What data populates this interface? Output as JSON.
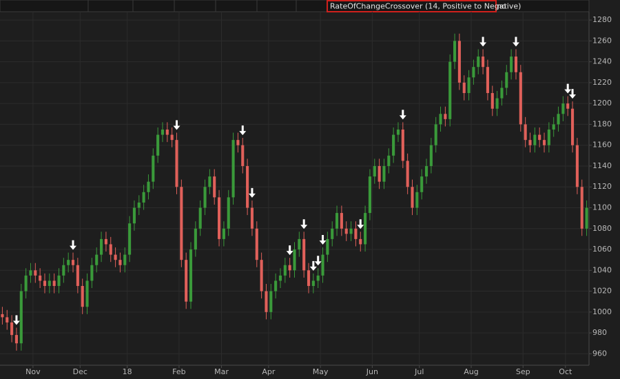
{
  "chart_data": {
    "type": "candlestick",
    "title": "RateOfChangeCrossover (14, Positive to Negative)",
    "title_suffix": "no",
    "up_color": "#3a9a3a",
    "down_color": "#e0605a",
    "signal_color": "#ffffff",
    "grid": true,
    "xlim": [
      0,
      125
    ],
    "xticks": [
      {
        "value": 7,
        "label": "Nov"
      },
      {
        "value": 17,
        "label": "Dec"
      },
      {
        "value": 27,
        "label": "18"
      },
      {
        "value": 38,
        "label": "Feb"
      },
      {
        "value": 47,
        "label": "Mar"
      },
      {
        "value": 57,
        "label": "Apr"
      },
      {
        "value": 68,
        "label": "May"
      },
      {
        "value": 79,
        "label": "Jun"
      },
      {
        "value": 89,
        "label": "Jul"
      },
      {
        "value": 100,
        "label": "Aug"
      },
      {
        "value": 111,
        "label": "Sep"
      },
      {
        "value": 120,
        "label": "Oct"
      }
    ],
    "ylim": [
      949,
      1288
    ],
    "yticks": [
      960,
      980,
      1000,
      1020,
      1040,
      1060,
      1080,
      1100,
      1120,
      1140,
      1160,
      1180,
      1200,
      1220,
      1240,
      1260,
      1280
    ],
    "open": [
      998,
      995,
      990,
      978,
      970,
      1020,
      1035,
      1040,
      1035,
      1030,
      1025,
      1030,
      1025,
      1035,
      1045,
      1050,
      1045,
      1025,
      1005,
      1030,
      1045,
      1055,
      1070,
      1065,
      1055,
      1050,
      1045,
      1055,
      1085,
      1100,
      1105,
      1115,
      1125,
      1150,
      1170,
      1175,
      1170,
      1165,
      1120,
      1050,
      1010,
      1060,
      1080,
      1100,
      1120,
      1130,
      1110,
      1070,
      1080,
      1110,
      1165,
      1160,
      1140,
      1100,
      1080,
      1050,
      1020,
      1000,
      1020,
      1030,
      1035,
      1045,
      1040,
      1060,
      1070,
      1040,
      1025,
      1030,
      1035,
      1055,
      1070,
      1080,
      1095,
      1080,
      1075,
      1080,
      1070,
      1065,
      1095,
      1130,
      1140,
      1125,
      1140,
      1150,
      1170,
      1175,
      1145,
      1120,
      1100,
      1115,
      1130,
      1140,
      1160,
      1180,
      1190,
      1185,
      1240,
      1260,
      1220,
      1210,
      1225,
      1235,
      1245,
      1235,
      1210,
      1195,
      1205,
      1215,
      1230,
      1245,
      1230,
      1180,
      1165,
      1160,
      1170,
      1165,
      1160,
      1175,
      1180,
      1190,
      1200,
      1195,
      1160,
      1120,
      1080
    ],
    "high": [
      1005,
      1002,
      997,
      985,
      1027,
      1042,
      1047,
      1047,
      1042,
      1037,
      1037,
      1037,
      1042,
      1052,
      1057,
      1057,
      1052,
      1032,
      1037,
      1052,
      1062,
      1077,
      1077,
      1072,
      1062,
      1057,
      1062,
      1092,
      1107,
      1112,
      1122,
      1132,
      1157,
      1177,
      1182,
      1182,
      1177,
      1172,
      1127,
      1057,
      1067,
      1087,
      1107,
      1127,
      1137,
      1137,
      1117,
      1087,
      1117,
      1172,
      1172,
      1167,
      1147,
      1107,
      1087,
      1057,
      1027,
      1027,
      1037,
      1042,
      1052,
      1052,
      1067,
      1077,
      1077,
      1047,
      1037,
      1042,
      1062,
      1077,
      1087,
      1102,
      1102,
      1087,
      1087,
      1087,
      1077,
      1102,
      1137,
      1147,
      1147,
      1147,
      1157,
      1177,
      1182,
      1182,
      1152,
      1127,
      1122,
      1137,
      1147,
      1167,
      1187,
      1197,
      1197,
      1247,
      1267,
      1267,
      1227,
      1232,
      1242,
      1252,
      1252,
      1242,
      1217,
      1212,
      1222,
      1237,
      1252,
      1252,
      1237,
      1187,
      1172,
      1177,
      1177,
      1172,
      1182,
      1187,
      1197,
      1207,
      1207,
      1202,
      1167,
      1127,
      1107
    ],
    "low": [
      988,
      983,
      971,
      963,
      963,
      1013,
      1028,
      1028,
      1023,
      1018,
      1018,
      1018,
      1018,
      1028,
      1038,
      1038,
      1018,
      998,
      998,
      1023,
      1038,
      1048,
      1058,
      1048,
      1043,
      1038,
      1038,
      1048,
      1078,
      1093,
      1098,
      1108,
      1118,
      1143,
      1163,
      1163,
      1158,
      1113,
      1043,
      1003,
      1003,
      1053,
      1073,
      1093,
      1113,
      1103,
      1063,
      1063,
      1073,
      1103,
      1153,
      1133,
      1093,
      1073,
      1043,
      1013,
      993,
      993,
      1013,
      1023,
      1028,
      1033,
      1033,
      1053,
      1033,
      1018,
      1018,
      1023,
      1028,
      1048,
      1063,
      1073,
      1073,
      1068,
      1068,
      1063,
      1058,
      1058,
      1088,
      1123,
      1118,
      1118,
      1133,
      1143,
      1163,
      1138,
      1113,
      1093,
      1093,
      1108,
      1123,
      1133,
      1153,
      1173,
      1178,
      1178,
      1233,
      1213,
      1203,
      1203,
      1218,
      1228,
      1228,
      1203,
      1188,
      1188,
      1198,
      1208,
      1223,
      1223,
      1173,
      1158,
      1153,
      1153,
      1158,
      1153,
      1153,
      1168,
      1173,
      1183,
      1188,
      1153,
      1113,
      1073,
      1073
    ],
    "close": [
      995,
      990,
      978,
      970,
      1020,
      1035,
      1040,
      1035,
      1030,
      1025,
      1030,
      1025,
      1035,
      1045,
      1050,
      1045,
      1025,
      1005,
      1030,
      1045,
      1055,
      1070,
      1065,
      1055,
      1050,
      1045,
      1055,
      1085,
      1100,
      1105,
      1115,
      1125,
      1150,
      1170,
      1175,
      1170,
      1165,
      1120,
      1050,
      1010,
      1060,
      1080,
      1100,
      1120,
      1130,
      1110,
      1070,
      1080,
      1110,
      1165,
      1160,
      1140,
      1100,
      1080,
      1050,
      1020,
      1000,
      1020,
      1030,
      1035,
      1045,
      1040,
      1060,
      1070,
      1040,
      1025,
      1030,
      1035,
      1055,
      1070,
      1080,
      1095,
      1080,
      1075,
      1080,
      1070,
      1065,
      1095,
      1130,
      1140,
      1125,
      1140,
      1150,
      1170,
      1175,
      1145,
      1120,
      1100,
      1115,
      1130,
      1140,
      1160,
      1180,
      1190,
      1185,
      1240,
      1260,
      1220,
      1210,
      1225,
      1235,
      1245,
      1235,
      1210,
      1195,
      1205,
      1215,
      1230,
      1245,
      1230,
      1180,
      1165,
      1160,
      1170,
      1165,
      1160,
      1175,
      1180,
      1190,
      1200,
      1195,
      1160,
      1120,
      1080,
      1100
    ],
    "signals": [
      3,
      15,
      37,
      51,
      53,
      61,
      64,
      66,
      67,
      68,
      76,
      85,
      102,
      109,
      120,
      121
    ]
  }
}
